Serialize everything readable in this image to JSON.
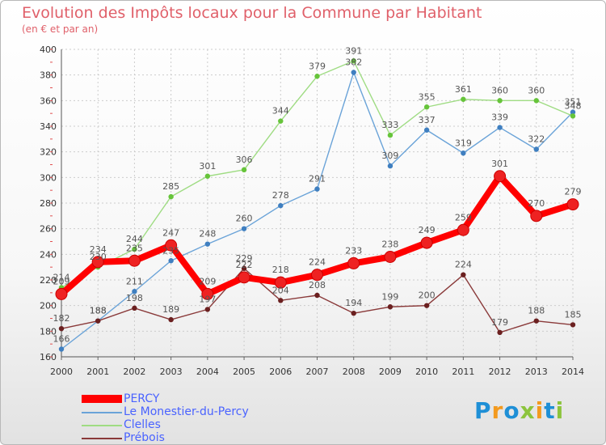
{
  "header": {
    "title": "Evolution des Impôts locaux pour la Commune par Habitant",
    "subtitle": "(en € et par an)"
  },
  "brand": {
    "logo_text": "Proxiti"
  },
  "chart_data": {
    "type": "line",
    "x": [
      2000,
      2001,
      2002,
      2003,
      2004,
      2005,
      2006,
      2007,
      2008,
      2009,
      2010,
      2011,
      2012,
      2013,
      2014
    ],
    "ylim": [
      160,
      400
    ],
    "yticks": [
      160,
      180,
      200,
      220,
      240,
      260,
      280,
      300,
      320,
      340,
      360,
      380,
      400
    ],
    "grid": true,
    "legend": "bottom-left",
    "series": [
      {
        "name": "Le Monestier-du-Percy",
        "color": "#6aa3d8",
        "marker": "#3f7fc0",
        "values": [
          166,
          188,
          211,
          235,
          248,
          260,
          278,
          291,
          382,
          309,
          337,
          319,
          339,
          322,
          351
        ]
      },
      {
        "name": "Clelles",
        "color": "#9fdc83",
        "marker": "#66c43a",
        "values": [
          214,
          230,
          244,
          285,
          301,
          306,
          344,
          379,
          391,
          333,
          355,
          361,
          360,
          360,
          348
        ]
      },
      {
        "name": "Prébois",
        "color": "#8a3a3a",
        "marker": "#6b2020",
        "values": [
          182,
          188,
          198,
          189,
          197,
          229,
          204,
          208,
          194,
          199,
          200,
          224,
          179,
          188,
          185
        ]
      },
      {
        "name": "PERCY",
        "color": "#ff0000",
        "marker": "#ee2222",
        "values": [
          209,
          234,
          235,
          247,
          209,
          222,
          218,
          224,
          233,
          238,
          249,
          259,
          301,
          270,
          279
        ]
      }
    ],
    "labels": {
      "Le Monestier-du-Percy": [
        "166",
        "188",
        "211",
        "235",
        "248",
        "260",
        "278",
        "291",
        "382",
        "309",
        "337",
        "319",
        "339",
        "322",
        "351"
      ],
      "Clelles": [
        "214",
        "230",
        "244",
        "285",
        "301",
        "306",
        "344",
        "379",
        "391",
        "333",
        "355",
        "361",
        "360",
        "360",
        "348"
      ],
      "Prébois": [
        "182",
        "188",
        "198",
        "189",
        "197",
        "229",
        "204",
        "208",
        "194",
        "199",
        "200",
        "224",
        "179",
        "188",
        "185"
      ],
      "PERCY": [
        "209",
        "234",
        "235",
        "247",
        "209",
        "222",
        "218",
        "224",
        "233",
        "238",
        "249",
        "259",
        "301",
        "270",
        "279"
      ]
    }
  }
}
